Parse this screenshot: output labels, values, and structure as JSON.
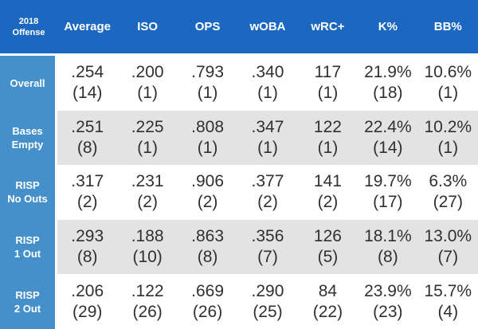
{
  "colors": {
    "header_bg": "#1c68c0",
    "header_text": "#ffffff",
    "row_label_bg": "#4590cb",
    "row_bg": "#ffffff",
    "alt_row_bg": "#e3e3e3",
    "data_text": "#303030"
  },
  "chart_data": {
    "type": "table",
    "title": "2018 Offense",
    "corner_lines": [
      "2018",
      "Offense"
    ],
    "columns": [
      "Average",
      "ISO",
      "OPS",
      "wOBA",
      "wRC+",
      "K%",
      "BB%"
    ],
    "rows": [
      {
        "label_lines": [
          "Overall"
        ],
        "cells": [
          {
            "value": ".254",
            "rank": "(14)"
          },
          {
            "value": ".200",
            "rank": "(1)"
          },
          {
            "value": ".793",
            "rank": "(1)"
          },
          {
            "value": ".340",
            "rank": "(1)"
          },
          {
            "value": "117",
            "rank": "(1)"
          },
          {
            "value": "21.9%",
            "rank": "(18)"
          },
          {
            "value": "10.6%",
            "rank": "(1)"
          }
        ]
      },
      {
        "label_lines": [
          "Bases",
          "Empty"
        ],
        "cells": [
          {
            "value": ".251",
            "rank": "(8)"
          },
          {
            "value": ".225",
            "rank": "(1)"
          },
          {
            "value": ".808",
            "rank": "(1)"
          },
          {
            "value": ".347",
            "rank": "(1)"
          },
          {
            "value": "122",
            "rank": "(1)"
          },
          {
            "value": "22.4%",
            "rank": "(14)"
          },
          {
            "value": "10.2%",
            "rank": "(1)"
          }
        ]
      },
      {
        "label_lines": [
          "RISP",
          "No Outs"
        ],
        "cells": [
          {
            "value": ".317",
            "rank": "(2)"
          },
          {
            "value": ".231",
            "rank": "(2)"
          },
          {
            "value": ".906",
            "rank": "(2)"
          },
          {
            "value": ".377",
            "rank": "(2)"
          },
          {
            "value": "141",
            "rank": "(2)"
          },
          {
            "value": "19.7%",
            "rank": "(17)"
          },
          {
            "value": "6.3%",
            "rank": "(27)"
          }
        ]
      },
      {
        "label_lines": [
          "RISP",
          "1 Out"
        ],
        "cells": [
          {
            "value": ".293",
            "rank": "(8)"
          },
          {
            "value": ".188",
            "rank": "(10)"
          },
          {
            "value": ".863",
            "rank": "(8)"
          },
          {
            "value": ".356",
            "rank": "(7)"
          },
          {
            "value": "126",
            "rank": "(5)"
          },
          {
            "value": "18.1%",
            "rank": "(8)"
          },
          {
            "value": "13.0%",
            "rank": "(7)"
          }
        ]
      },
      {
        "label_lines": [
          "RISP",
          "2 Out"
        ],
        "cells": [
          {
            "value": ".206",
            "rank": "(29)"
          },
          {
            "value": ".122",
            "rank": "(26)"
          },
          {
            "value": ".669",
            "rank": "(26)"
          },
          {
            "value": ".290",
            "rank": "(25)"
          },
          {
            "value": "84",
            "rank": "(22)"
          },
          {
            "value": "23.9%",
            "rank": "(23)"
          },
          {
            "value": "15.7%",
            "rank": "(4)"
          }
        ]
      }
    ]
  }
}
